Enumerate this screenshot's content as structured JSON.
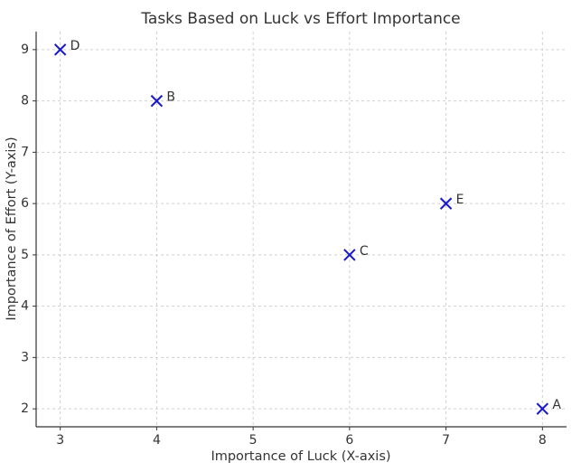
{
  "chart_data": {
    "type": "scatter",
    "title": "Tasks Based on Luck vs Effort Importance",
    "x_label": "Importance of Luck (X-axis)",
    "y_label": "Importance of Effort (Y-axis)",
    "labels": [
      "A",
      "B",
      "C",
      "D",
      "E"
    ],
    "x": [
      8,
      4,
      6,
      3,
      7
    ],
    "values": [
      2,
      8,
      5,
      9,
      6
    ],
    "color": "#1a1acc",
    "xlim": [
      2.75,
      8.25
    ],
    "ylim": [
      1.65,
      9.35
    ],
    "xticks": [
      3,
      4,
      5,
      6,
      7,
      8
    ],
    "yticks": [
      2,
      3,
      4,
      5,
      6,
      7,
      8,
      9
    ],
    "grid": true
  }
}
